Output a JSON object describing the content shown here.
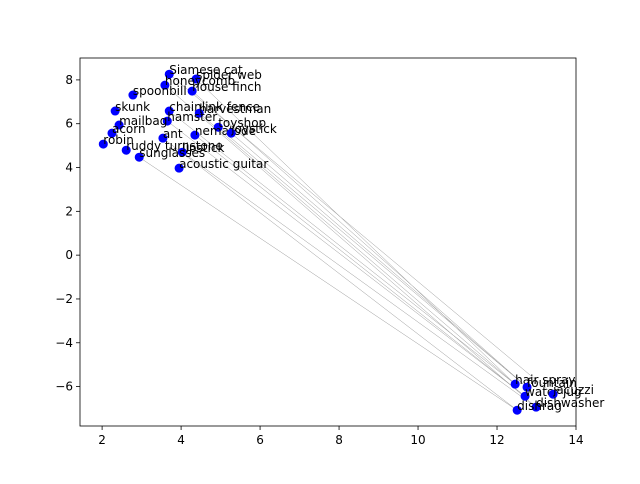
{
  "chart_data": {
    "type": "scatter",
    "labels": [
      "Siamese cat",
      "spider web",
      "honeycomb",
      "house finch",
      "spoonbill",
      "skunk",
      "chainlink fence",
      "harvestman",
      "hamster",
      "mailbag",
      "toyshop",
      "nematode",
      "joystick",
      "acorn",
      "ant",
      "robin",
      "ruddy turnstone",
      "lipstick",
      "sunglasses",
      "acoustic guitar",
      "hair spray",
      "fountain",
      "water jug",
      "jacuzzi",
      "dishwasher",
      "dishrag"
    ],
    "x": [
      3.7,
      4.38,
      3.59,
      4.28,
      2.78,
      2.33,
      3.7,
      4.46,
      3.65,
      2.43,
      4.94,
      4.35,
      5.27,
      2.25,
      3.54,
      2.03,
      2.61,
      4.03,
      2.94,
      3.95,
      12.46,
      12.76,
      12.71,
      13.42,
      12.99,
      12.51
    ],
    "y": [
      8.26,
      8.04,
      7.76,
      7.49,
      7.31,
      6.58,
      6.58,
      6.48,
      6.12,
      5.94,
      5.84,
      5.48,
      5.57,
      5.57,
      5.34,
      5.07,
      4.79,
      4.7,
      4.47,
      3.97,
      -5.89,
      -6.03,
      -6.44,
      -6.35,
      -6.94,
      -7.08
    ],
    "links": [
      [
        1,
        20
      ],
      [
        6,
        20
      ],
      [
        7,
        20
      ],
      [
        3,
        21
      ],
      [
        12,
        21
      ],
      [
        10,
        21
      ],
      [
        11,
        22
      ],
      [
        8,
        22
      ],
      [
        0,
        23
      ],
      [
        2,
        24
      ],
      [
        17,
        24
      ],
      [
        18,
        25
      ],
      [
        14,
        25
      ]
    ],
    "color": "#0000ff",
    "link_color": "#999999",
    "xlim": [
      1.44,
      14.0
    ],
    "ylim": [
      -7.8,
      9.0
    ],
    "xticks": [
      2,
      4,
      6,
      8,
      10,
      12,
      14
    ],
    "yticks": [
      {
        "value": -6,
        "label": "−6"
      },
      {
        "value": -4,
        "label": "−4"
      },
      {
        "value": -2,
        "label": "−2"
      },
      0,
      2,
      4,
      6,
      8
    ]
  }
}
